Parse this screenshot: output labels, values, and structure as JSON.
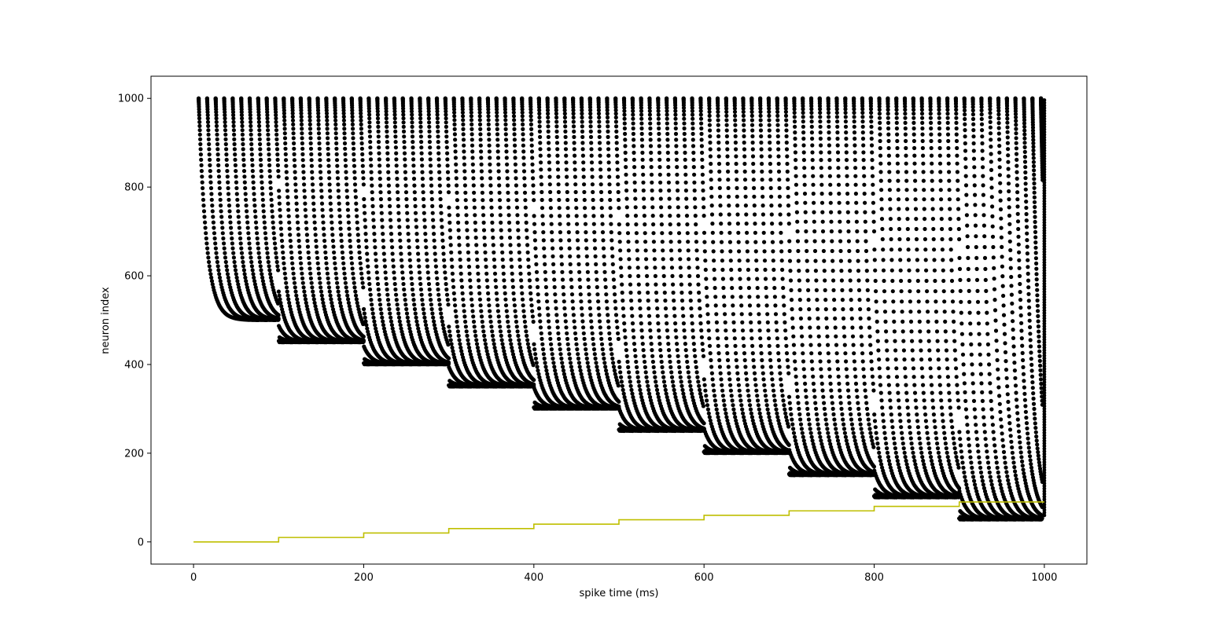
{
  "chart_data": {
    "type": "scatter",
    "title": "",
    "xlabel": "spike time (ms)",
    "ylabel": "neuron index",
    "xlim": [
      -50,
      1050
    ],
    "ylim": [
      -50,
      1050
    ],
    "xticks": [
      0,
      200,
      400,
      600,
      800,
      1000
    ],
    "yticks": [
      0,
      200,
      400,
      600,
      800,
      1000
    ],
    "grid": false,
    "legend": "none",
    "series": [
      {
        "type": "scatter",
        "marker_color": "#000000",
        "description_of_pattern": "spike raster: one burst per 10 ms; each burst starts at a wave and asymptotes down toward the current threshold neuron, threshold dropping by 50 every 100 ms from 500 to 50",
        "burst_interval_ms": 10,
        "wave_top_neuron": 1000,
        "threshold_steps": [
          {
            "t_start": 0,
            "neuron": 500
          },
          {
            "t_start": 100,
            "neuron": 450
          },
          {
            "t_start": 200,
            "neuron": 400
          },
          {
            "t_start": 300,
            "neuron": 350
          },
          {
            "t_start": 400,
            "neuron": 300
          },
          {
            "t_start": 500,
            "neuron": 250
          },
          {
            "t_start": 600,
            "neuron": 200
          },
          {
            "t_start": 700,
            "neuron": 150
          },
          {
            "t_start": 800,
            "neuron": 100
          },
          {
            "t_start": 900,
            "neuron": 50
          }
        ]
      },
      {
        "type": "step",
        "color": "#bfbf00",
        "x": [
          0,
          100,
          200,
          300,
          400,
          500,
          600,
          700,
          800,
          900,
          1000
        ],
        "y": [
          0,
          10,
          20,
          30,
          40,
          50,
          60,
          70,
          80,
          90,
          90
        ]
      }
    ]
  }
}
